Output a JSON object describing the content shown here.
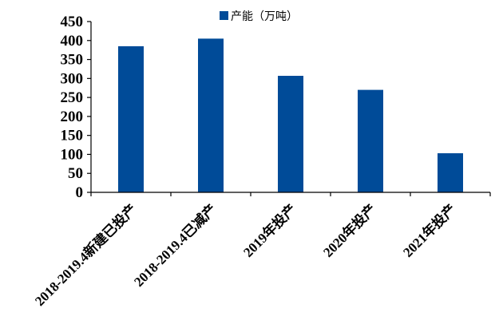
{
  "chart_data": {
    "type": "bar",
    "categories": [
      "2018-2019.4新建已投产",
      "2018-2019.4已减产",
      "2019年投产",
      "2020年投产",
      "2021年投产"
    ],
    "series": [
      {
        "name": "产能（万吨）",
        "values": [
          385,
          405,
          307,
          270,
          103
        ],
        "color": "#004b98"
      }
    ],
    "ylim": [
      0,
      450
    ],
    "yticks": [
      0,
      50,
      100,
      150,
      200,
      250,
      300,
      350,
      400,
      450
    ],
    "title": "",
    "xlabel": "",
    "ylabel": "",
    "legend_position": "top-right",
    "grid": false
  }
}
